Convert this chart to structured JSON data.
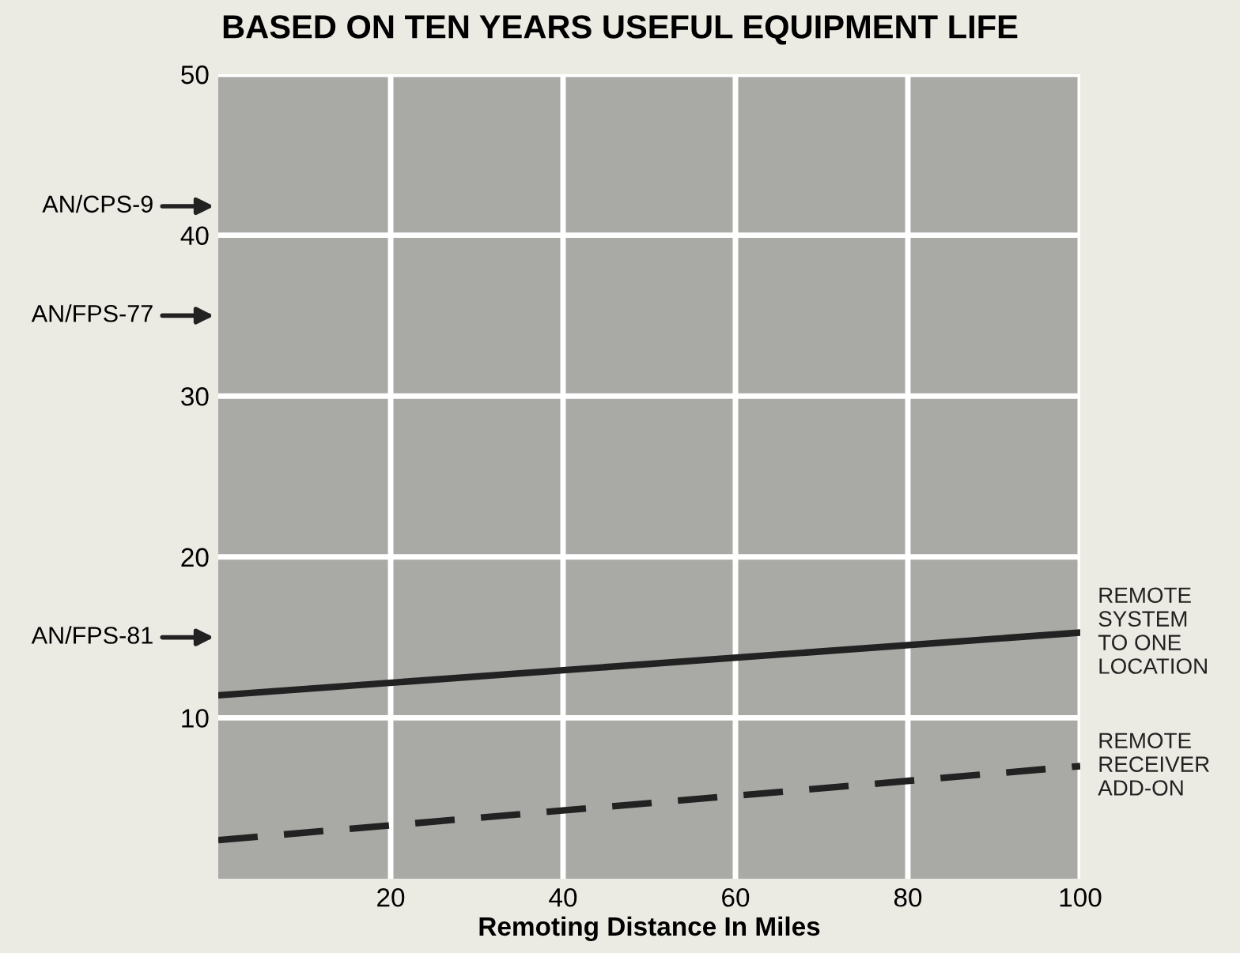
{
  "chart_data": {
    "type": "line",
    "title": "BASED ON TEN YEARS USEFUL EQUIPMENT LIFE",
    "xlabel": "Remoting Distance In Miles",
    "x": [
      0,
      100
    ],
    "series": [
      {
        "name": "REMOTE\nSYSTEM\nTO ONE\nLOCATION",
        "color": "#222222",
        "values": [
          11.4,
          15.3
        ],
        "line_style": "solid"
      },
      {
        "name": "REMOTE\nRECEIVER\nADD-ON",
        "color": "#222222",
        "values": [
          2.4,
          7.0
        ],
        "line_style": "dashed"
      }
    ],
    "annotations": [
      "AN/CPS-9",
      "AN/FPS-77",
      "AN/FPS-81"
    ],
    "xlim": [
      0,
      100
    ],
    "ylim": [
      0,
      50
    ],
    "xticks": [
      20,
      40,
      60,
      80,
      100
    ],
    "yticks": [
      10,
      20,
      30,
      40,
      50
    ],
    "grid": true,
    "legend": false
  }
}
